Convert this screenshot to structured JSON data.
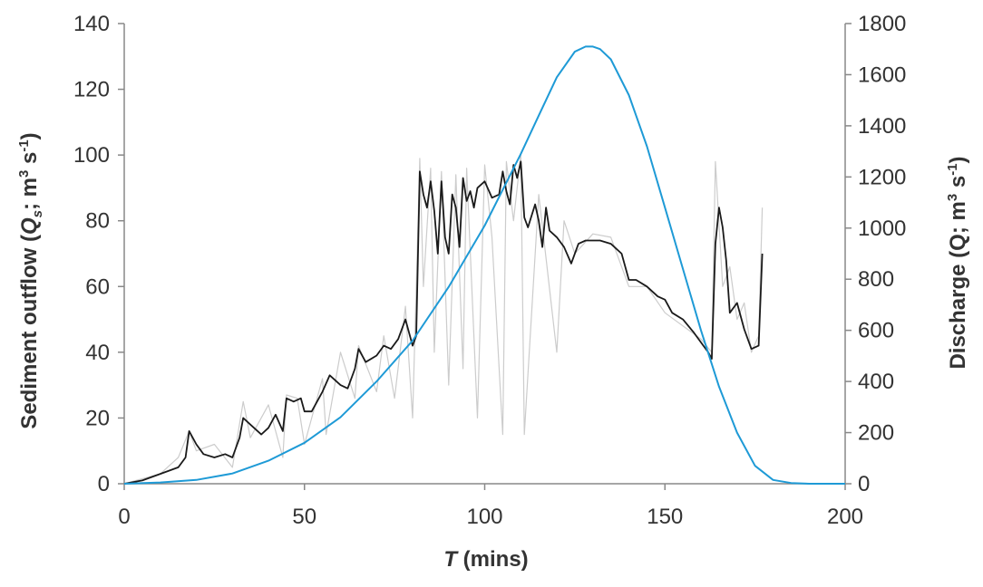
{
  "chart_data": {
    "type": "line",
    "xlabel": {
      "italic": "T",
      "rest": " (mins)"
    },
    "ylabel_left": {
      "main": "Sediment outflow (",
      "var": "Q",
      "sub": "s",
      "mid": "; m",
      "sup1": "3",
      "mid2": " s",
      "sup2": "-1",
      "end": ")"
    },
    "ylabel_right": {
      "main": "Discharge (Q; m",
      "sup1": "3",
      "mid": " s",
      "sup2": "-1",
      "end": ")"
    },
    "xlim": [
      0,
      200
    ],
    "ylim_left": [
      0,
      140
    ],
    "ylim_right": [
      0,
      1800
    ],
    "x_ticks": [
      0,
      50,
      100,
      150,
      200
    ],
    "y_left_ticks": [
      0,
      20,
      40,
      60,
      80,
      100,
      120,
      140
    ],
    "y_right_ticks": [
      0,
      200,
      400,
      600,
      800,
      1000,
      1200,
      1400,
      1600,
      1800
    ],
    "series": [
      {
        "axis": "left",
        "color": "#cccccc",
        "style": "raw",
        "x": [
          0,
          10,
          15,
          18,
          20,
          25,
          30,
          33,
          35,
          40,
          44,
          45,
          48,
          50,
          55,
          56,
          60,
          64,
          65,
          70,
          72,
          75,
          78,
          80,
          82,
          83,
          85,
          86,
          88,
          90,
          92,
          94,
          95,
          98,
          100,
          102,
          105,
          106,
          108,
          110,
          111,
          115,
          120,
          122,
          125,
          130,
          135,
          140,
          145,
          150,
          155,
          160,
          163,
          164,
          166,
          168,
          170,
          172,
          174,
          176,
          177
        ],
        "y": [
          0,
          3,
          8,
          16,
          10,
          12,
          5,
          25,
          14,
          24,
          8,
          27,
          26,
          12,
          32,
          15,
          40,
          26,
          42,
          28,
          45,
          26,
          54,
          20,
          99,
          60,
          96,
          40,
          95,
          30,
          94,
          35,
          96,
          20,
          97,
          75,
          15,
          98,
          80,
          100,
          15,
          88,
          40,
          80,
          70,
          76,
          75,
          60,
          60,
          52,
          48,
          44,
          40,
          98,
          60,
          66,
          50,
          55,
          40,
          45,
          84
        ]
      },
      {
        "axis": "left",
        "color": "#1a1a1a",
        "style": "smoothed",
        "x": [
          0,
          5,
          10,
          15,
          17,
          18,
          20,
          22,
          25,
          28,
          30,
          32,
          33,
          35,
          38,
          40,
          42,
          44,
          45,
          47,
          49,
          50,
          52,
          55,
          57,
          60,
          62,
          64,
          65,
          67,
          70,
          72,
          74,
          76,
          78,
          80,
          81,
          82,
          83,
          84,
          85,
          86,
          87,
          88,
          89,
          90,
          91,
          92,
          93,
          94,
          95,
          96,
          97,
          98,
          100,
          102,
          104,
          105,
          106,
          107,
          108,
          109,
          110,
          111,
          112,
          114,
          115,
          116,
          117,
          118,
          120,
          122,
          124,
          126,
          128,
          130,
          132,
          135,
          138,
          140,
          142,
          145,
          148,
          150,
          152,
          155,
          158,
          160,
          162,
          163,
          164,
          165,
          166,
          167,
          168,
          170,
          172,
          174,
          176,
          177
        ],
        "y": [
          0,
          1,
          3,
          5,
          8,
          16,
          12,
          9,
          8,
          9,
          8,
          14,
          20,
          18,
          15,
          17,
          21,
          16,
          26,
          25,
          26,
          22,
          22,
          28,
          33,
          30,
          29,
          35,
          41,
          37,
          39,
          42,
          41,
          44,
          50,
          42,
          45,
          95,
          88,
          84,
          92,
          83,
          70,
          92,
          75,
          70,
          88,
          84,
          72,
          93,
          86,
          89,
          84,
          90,
          92,
          87,
          88,
          95,
          89,
          85,
          97,
          93,
          98,
          81,
          78,
          85,
          80,
          72,
          84,
          77,
          75,
          72,
          67,
          73,
          74,
          74,
          74,
          73,
          70,
          62,
          62,
          60,
          57,
          56,
          52,
          50,
          46,
          43,
          40,
          38,
          73,
          84,
          78,
          68,
          52,
          55,
          47,
          41,
          42,
          70
        ]
      },
      {
        "axis": "right",
        "color": "#1e9ad6",
        "style": "discharge",
        "x": [
          0,
          10,
          20,
          30,
          40,
          50,
          60,
          70,
          80,
          90,
          100,
          110,
          115,
          120,
          125,
          128,
          130,
          132,
          135,
          140,
          145,
          150,
          155,
          160,
          165,
          170,
          175,
          180,
          185,
          190,
          200
        ],
        "y": [
          0,
          5,
          15,
          40,
          90,
          160,
          260,
          400,
          560,
          770,
          1010,
          1290,
          1440,
          1590,
          1690,
          1710,
          1710,
          1700,
          1660,
          1520,
          1320,
          1080,
          840,
          600,
          380,
          200,
          70,
          15,
          3,
          0,
          0
        ]
      }
    ]
  }
}
